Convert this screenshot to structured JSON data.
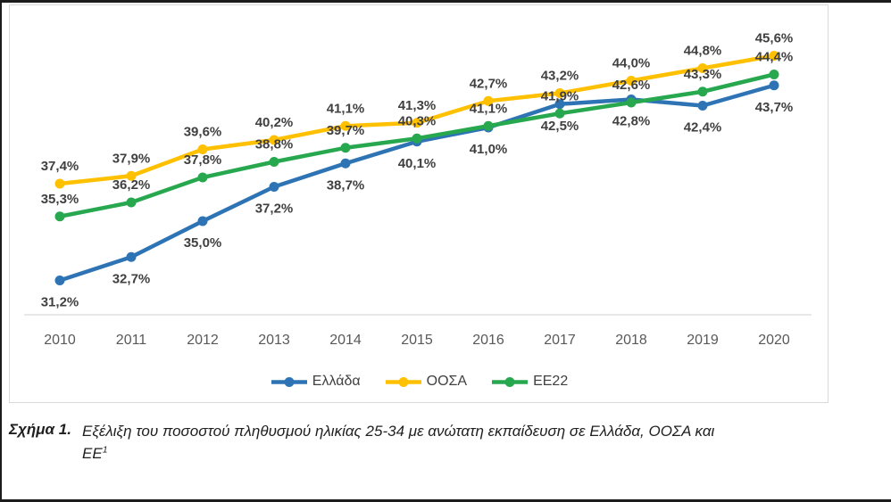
{
  "figure": {
    "caption_label": "Σχήμα 1.",
    "caption_line1": "Εξέλιξη του ποσοστού πληθυσμού ηλικίας 25-34 με ανώτατη εκπαίδευση σε Ελλάδα, ΟΟΣΑ και",
    "caption_line2": "ΕΕ",
    "footnote_marker": "1"
  },
  "chart_data": {
    "type": "line",
    "title": "",
    "xlabel": "",
    "ylabel": "",
    "categories": [
      "2010",
      "2011",
      "2012",
      "2013",
      "2014",
      "2015",
      "2016",
      "2017",
      "2018",
      "2019",
      "2020"
    ],
    "series": [
      {
        "name": "Ελλάδα",
        "color": "#2E74B5",
        "label_position": "below",
        "values": [
          31.2,
          32.7,
          35.0,
          37.2,
          38.7,
          40.1,
          41.0,
          42.5,
          42.8,
          42.4,
          43.7
        ]
      },
      {
        "name": "ΟΟΣΑ",
        "color": "#FFC000",
        "label_position": "above",
        "values": [
          37.4,
          37.9,
          39.6,
          40.2,
          41.1,
          41.3,
          42.7,
          43.2,
          44.0,
          44.8,
          45.6
        ]
      },
      {
        "name": "ΕΕ22",
        "color": "#27A84F",
        "label_position": "above",
        "values": [
          35.3,
          36.2,
          37.8,
          38.8,
          39.7,
          40.3,
          41.1,
          41.9,
          42.6,
          43.3,
          44.4
        ]
      }
    ],
    "ylim": [
      29,
      47
    ],
    "grid": false,
    "y_axis_visible": false,
    "legend_position": "bottom",
    "value_label_format": "comma-decimal-percent",
    "axis_color": "#d9d9d9",
    "tick_color": "#595959",
    "value_label_color": "#404040"
  }
}
